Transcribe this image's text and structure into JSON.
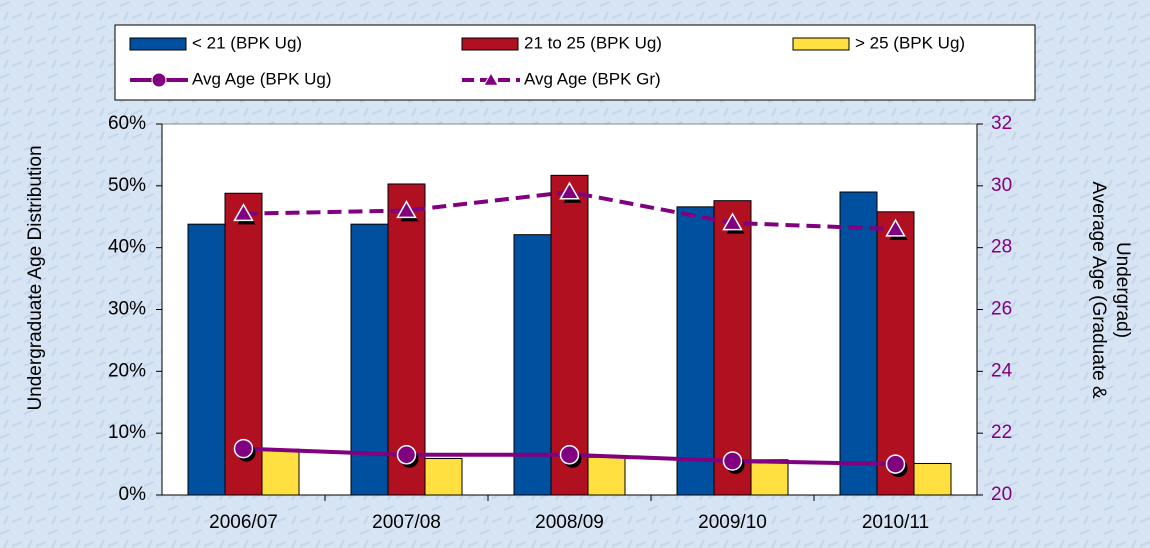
{
  "chart_data": {
    "type": "bar_line",
    "categories": [
      "2006/07",
      "2007/08",
      "2008/09",
      "2009/10",
      "2010/11"
    ],
    "series": [
      {
        "name": "< 21 (BPK Ug)",
        "color": "#0050a0",
        "values": [
          43.8,
          43.8,
          42.1,
          46.6,
          49.0
        ]
      },
      {
        "name": "21 to 25 (BPK Ug)",
        "color": "#b01020",
        "values": [
          48.8,
          50.3,
          51.7,
          47.6,
          45.8
        ]
      },
      {
        "name": "> 25 (BPK Ug)",
        "color": "#ffe040",
        "values": [
          7.4,
          5.9,
          6.1,
          5.7,
          5.1
        ]
      },
      {
        "name": "Avg Age (BPK Ug)",
        "color": "#800080",
        "axis": "y2",
        "marker": "circle",
        "dash": false,
        "values": [
          21.5,
          21.3,
          21.3,
          21.1,
          21.0
        ]
      },
      {
        "name": "Avg Age (BPK Gr)",
        "color": "#800080",
        "axis": "y2",
        "marker": "triangle",
        "dash": true,
        "values": [
          29.1,
          29.2,
          29.8,
          28.8,
          28.6
        ]
      }
    ],
    "ylabel": "Undergraduate Age Distribution",
    "y2label": [
      "Average Age (Graduate &",
      "Undergrad)"
    ],
    "ylim": [
      0,
      60
    ],
    "yticks": [
      {
        "value": 0,
        "label": "0%"
      },
      {
        "value": 10,
        "label": "10%"
      },
      {
        "value": 20,
        "label": "20%"
      },
      {
        "value": 30,
        "label": "30%"
      },
      {
        "value": 40,
        "label": "40%"
      },
      {
        "value": 50,
        "label": "50%"
      },
      {
        "value": 60,
        "label": "60%"
      }
    ],
    "y2lim": [
      20,
      32
    ],
    "y2ticks": [
      20,
      22,
      24,
      26,
      28,
      30,
      32
    ],
    "y2color": "#800080"
  }
}
